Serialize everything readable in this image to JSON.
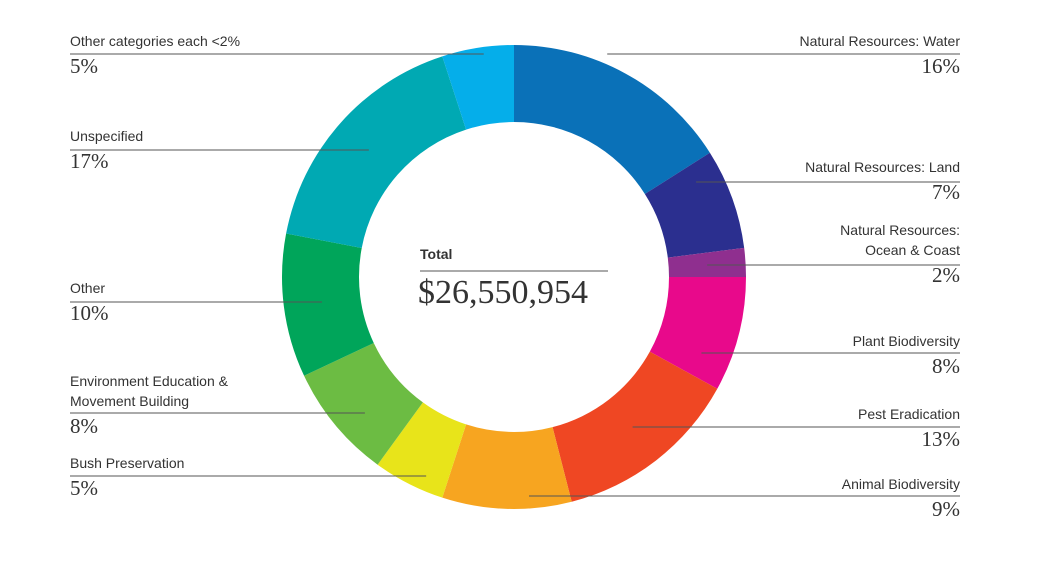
{
  "chart_data": {
    "type": "pie",
    "variant": "donut",
    "center": {
      "label": "Total",
      "value": "$26,550,954"
    },
    "slices": [
      {
        "name": "Natural Resources: Water",
        "value": 16,
        "display": "16%",
        "color": "#0a71b8"
      },
      {
        "name": "Natural Resources: Land",
        "value": 7,
        "display": "7%",
        "color": "#2b2f8f"
      },
      {
        "name": "Natural Resources: Ocean & Coast",
        "value": 2,
        "display": "2%",
        "color": "#8f2f8f"
      },
      {
        "name": "Plant Biodiversity",
        "value": 8,
        "display": "8%",
        "color": "#e8098b"
      },
      {
        "name": "Pest Eradication",
        "value": 13,
        "display": "13%",
        "color": "#ef4723"
      },
      {
        "name": "Animal Biodiversity",
        "value": 9,
        "display": "9%",
        "color": "#f7a520"
      },
      {
        "name": "Bush Preservation",
        "value": 5,
        "display": "5%",
        "color": "#e8e41a"
      },
      {
        "name": "Environment Education & Movement Building",
        "value": 8,
        "display": "8%",
        "color": "#6cbc43"
      },
      {
        "name": "Other",
        "value": 10,
        "display": "10%",
        "color": "#00a55a"
      },
      {
        "name": "Unspecified",
        "value": 17,
        "display": "17%",
        "color": "#00a9b3"
      },
      {
        "name": "Other categories each <2%",
        "value": 5,
        "display": "5%",
        "color": "#05aeea"
      }
    ]
  },
  "labels": {
    "water": {
      "name": "Natural Resources: Water",
      "pct": "16%"
    },
    "land": {
      "name": "Natural Resources: Land",
      "pct": "7%"
    },
    "ocean_l1": "Natural Resources:",
    "ocean_l2": "Ocean & Coast",
    "ocean_pct": "2%",
    "plant": {
      "name": "Plant Biodiversity",
      "pct": "8%"
    },
    "pest": {
      "name": "Pest Eradication",
      "pct": "13%"
    },
    "animal": {
      "name": "Animal Biodiversity",
      "pct": "9%"
    },
    "bush": {
      "name": "Bush Preservation",
      "pct": "5%"
    },
    "edu_l1": "Environment Education &",
    "edu_l2": "Movement Building",
    "edu_pct": "8%",
    "other": {
      "name": "Other",
      "pct": "10%"
    },
    "unspecified": {
      "name": "Unspecified",
      "pct": "17%"
    },
    "small": {
      "name": "Other categories each <2%",
      "pct": "5%"
    }
  }
}
